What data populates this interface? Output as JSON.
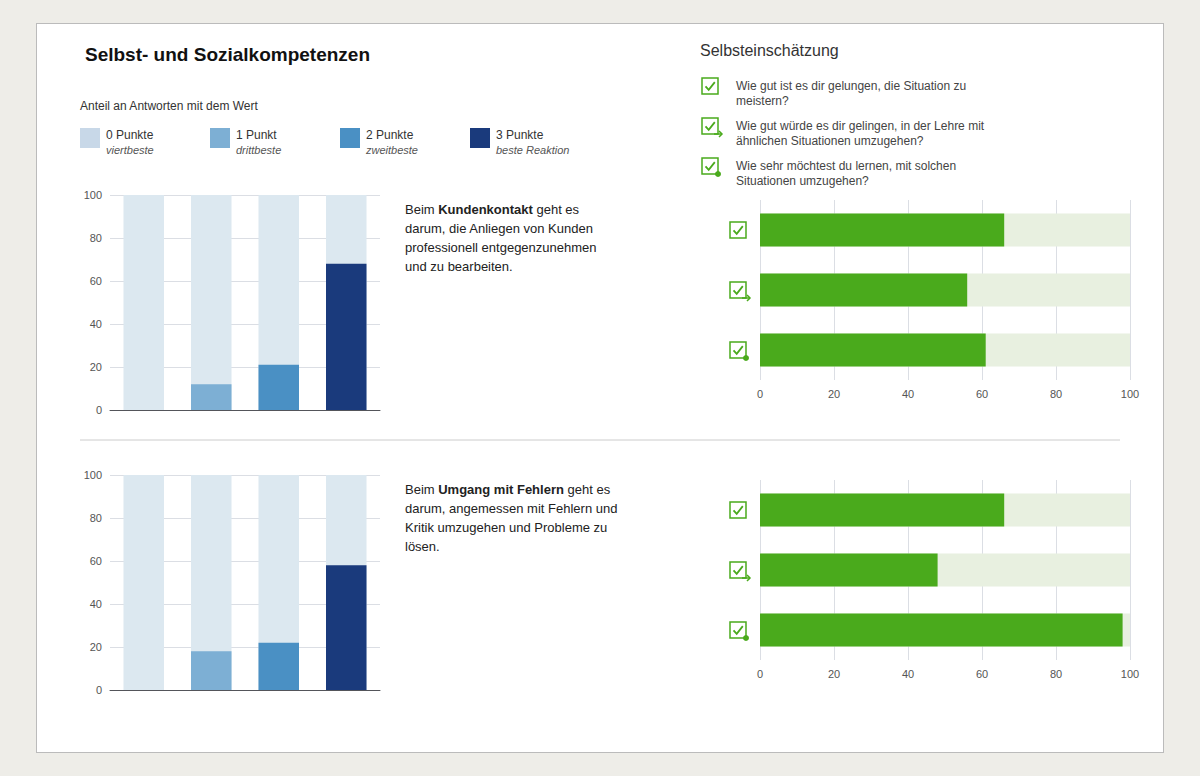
{
  "title": "Selbst- und Sozialkompetenzen",
  "legend_title": "Anteil an Antworten mit dem Wert",
  "panel_title": "Selbsteinschätzung",
  "chart_data": [
    {
      "type": "bar",
      "annotation": "Beim Kundenkontakt geht es\ndarum, die Anliegen von Kunden\nprofessionell entgegenzunehmen\nund zu bearbeiten.",
      "annotation_bold": "Kundenkontakt",
      "categories": [
        "0 Punkte\nviertbeste",
        "1 Punkt\ndrittbeste",
        "2 Punkte\nzweitbeste",
        "3 Punkte\nbeste Reaktion"
      ],
      "values": [
        0,
        12,
        21,
        68
      ],
      "colors": [
        "#c8d8e8",
        "#7dafd4",
        "#4a90c4",
        "#1a3a7c"
      ],
      "ylim": [
        0,
        100
      ],
      "yticks": [
        0,
        20,
        40,
        60,
        80,
        100
      ],
      "grid": true,
      "tick_labels": "y",
      "legend": "top"
    },
    {
      "type": "bar",
      "orientation": "horizontal",
      "categories": [
        "Wie gut ist es dir gelungen, die Situation zu\nmeistern?",
        "Wie gut würde es dir gelingen, in der Lehre mit\nähnlichen Situationen umzugehen?",
        "Wie sehr möchtest du lernen, mit solchen\nSituationen umzugehen?"
      ],
      "values": [
        66,
        56,
        61
      ],
      "color": "#4aaa1c",
      "xlim": [
        0,
        100
      ],
      "xticks": [
        0,
        20,
        40,
        60,
        80,
        100
      ],
      "grid": true,
      "tick_labels": "x",
      "legend": "top"
    },
    {
      "type": "bar",
      "annotation": "Beim Umgang mit Fehlern geht es\ndarum, angemessen mit Fehlern und\nKritik umzugehen und Probleme zu\nlösen.",
      "annotation_bold": "Umgang mit Fehlern",
      "categories": [
        "0 Punkte\nviertbeste",
        "1 Punkt\ndrittbeste",
        "2 Punkte\nzweitbeste",
        "3 Punkte\nbeste Reaktion"
      ],
      "values": [
        0,
        18,
        22,
        58
      ],
      "colors": [
        "#c8d8e8",
        "#7dafd4",
        "#4a90c4",
        "#1a3a7c"
      ],
      "ylim": [
        0,
        100
      ],
      "yticks": [
        0,
        20,
        40,
        60,
        80,
        100
      ],
      "grid": true,
      "tick_labels": "y"
    },
    {
      "type": "bar",
      "orientation": "horizontal",
      "categories": [
        "Wie gut ist es dir gelungen, die Situation zu\nmeistern?",
        "Wie gut würde es dir gelingen, in der Lehre mit\nähnlichen Situationen umzugehen?",
        "Wie sehr möchtest du lernen, mit solchen\nSituationen umzugehen?"
      ],
      "values": [
        66,
        48,
        98
      ],
      "color": "#4aaa1c",
      "xlim": [
        0,
        100
      ],
      "xticks": [
        0,
        20,
        40,
        60,
        80,
        100
      ],
      "grid": true,
      "tick_labels": "x"
    }
  ]
}
